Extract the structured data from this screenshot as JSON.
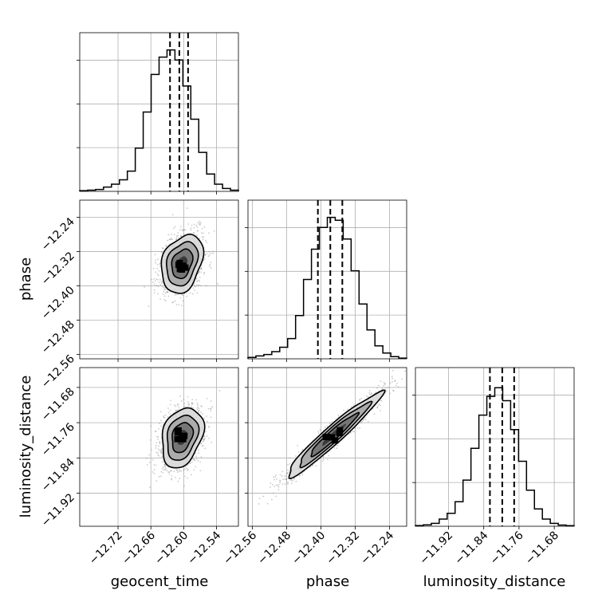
{
  "chart_data": {
    "type": "corner",
    "parameters": [
      {
        "key": "geocent_time",
        "label": "geocent_time",
        "range": [
          -12.79,
          -12.5
        ],
        "ticks": [
          -12.72,
          -12.66,
          -12.6,
          -12.54
        ],
        "tick_labels": [
          "−12.72",
          "−12.66",
          "−12.60",
          "−12.54"
        ],
        "quantiles": [
          -12.625,
          -12.608,
          -12.592
        ],
        "hist": [
          0.005,
          0.008,
          0.013,
          0.03,
          0.05,
          0.08,
          0.14,
          0.3,
          0.55,
          0.81,
          0.93,
          0.98,
          0.91,
          0.73,
          0.5,
          0.27,
          0.12,
          0.05,
          0.02,
          0.008
        ]
      },
      {
        "key": "phase",
        "label": "phase",
        "range": [
          -12.57,
          -12.2
        ],
        "ticks": [
          -12.56,
          -12.48,
          -12.4,
          -12.32,
          -12.24
        ],
        "tick_labels": [
          "−12.56",
          "−12.48",
          "−12.40",
          "−12.32",
          "−12.24"
        ],
        "quantiles": [
          -12.407,
          -12.378,
          -12.35
        ],
        "hist": [
          0.01,
          0.02,
          0.03,
          0.05,
          0.08,
          0.14,
          0.3,
          0.55,
          0.76,
          0.91,
          0.98,
          0.96,
          0.83,
          0.61,
          0.38,
          0.2,
          0.09,
          0.04,
          0.015,
          0.005
        ]
      },
      {
        "key": "luminosity_distance",
        "label": "luminosity_distance",
        "range": [
          -11.995,
          -11.635
        ],
        "ticks": [
          -11.92,
          -11.84,
          -11.76,
          -11.68
        ],
        "tick_labels": [
          "−11.92",
          "−11.84",
          "−11.76",
          "−11.68"
        ],
        "quantiles": [
          -11.826,
          -11.798,
          -11.771
        ],
        "hist": [
          0.005,
          0.01,
          0.02,
          0.05,
          0.09,
          0.17,
          0.32,
          0.54,
          0.77,
          0.9,
          0.96,
          0.87,
          0.67,
          0.45,
          0.25,
          0.12,
          0.05,
          0.02,
          0.008,
          0.004
        ]
      }
    ],
    "histogram_panels": {
      "yticks_count": 3,
      "grid": true
    },
    "pairs": [
      {
        "x": "geocent_time",
        "y": "phase",
        "center": [
          -12.603,
          -12.348
        ],
        "sigma": [
          0.019,
          0.034
        ],
        "rho": 0.28
      },
      {
        "x": "geocent_time",
        "y": "luminosity_distance",
        "center": [
          -12.603,
          -11.793
        ],
        "sigma": [
          0.019,
          0.034
        ],
        "rho": 0.28
      },
      {
        "x": "phase",
        "y": "luminosity_distance",
        "center": [
          -12.371,
          -11.788
        ],
        "sigma": [
          0.055,
          0.048
        ],
        "rho": 0.96
      }
    ],
    "contour_levels_sigma": [
      0.5,
      1.0,
      1.5,
      2.0
    ],
    "quantile_style": "dashed",
    "colors": {
      "line": "#000000",
      "scatter": "#8c8c8c",
      "grid": "#b0b0b0"
    }
  }
}
